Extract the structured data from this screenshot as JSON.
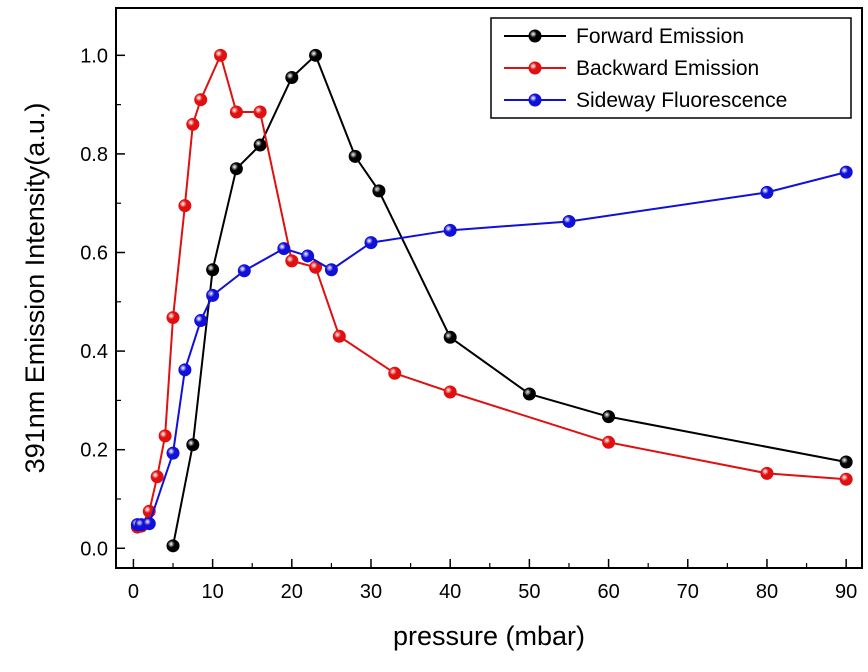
{
  "chart_data": {
    "type": "line",
    "xlabel": "pressure (mbar)",
    "ylabel": "391nm Emission Intensity(a.u.)",
    "xlim": [
      -2.2,
      92
    ],
    "ylim": [
      -0.04,
      1.096
    ],
    "xticks": [
      0,
      10,
      20,
      30,
      40,
      50,
      60,
      70,
      80,
      90
    ],
    "xtick_labels": [
      "0",
      "10",
      "20",
      "30",
      "40",
      "50",
      "60",
      "70",
      "80",
      "90"
    ],
    "yticks": [
      0.0,
      0.2,
      0.4,
      0.6,
      0.8,
      1.0
    ],
    "ytick_labels": [
      "0.0",
      "0.2",
      "0.4",
      "0.6",
      "0.8",
      "1.0"
    ],
    "grid": false,
    "legend_position": "top-right",
    "series": [
      {
        "name": "Forward Emission",
        "color": "#000000",
        "x": [
          5,
          7.5,
          10,
          13,
          16,
          20,
          23,
          28,
          31,
          40,
          50,
          60,
          90
        ],
        "y": [
          0.005,
          0.21,
          0.565,
          0.77,
          0.818,
          0.955,
          1.0,
          0.795,
          0.725,
          0.428,
          0.313,
          0.267,
          0.175
        ]
      },
      {
        "name": "Backward Emission",
        "color": "#e01010",
        "x": [
          0.5,
          1,
          2,
          3,
          4,
          5,
          6.5,
          7.5,
          8.5,
          11,
          13,
          16,
          20,
          23,
          26,
          33,
          40,
          60,
          80,
          90
        ],
        "y": [
          0.043,
          0.045,
          0.075,
          0.145,
          0.228,
          0.468,
          0.695,
          0.86,
          0.91,
          1.0,
          0.885,
          0.885,
          0.583,
          0.57,
          0.43,
          0.355,
          0.317,
          0.215,
          0.152,
          0.14
        ]
      },
      {
        "name": "Sideway Fluorescence",
        "color": "#1010d8",
        "x": [
          0.5,
          1,
          2,
          5,
          6.5,
          8.5,
          10,
          14,
          19,
          22,
          25,
          30,
          40,
          55,
          80,
          90
        ],
        "y": [
          0.048,
          0.048,
          0.05,
          0.193,
          0.362,
          0.462,
          0.513,
          0.563,
          0.608,
          0.593,
          0.565,
          0.62,
          0.645,
          0.663,
          0.722,
          0.763
        ]
      }
    ]
  }
}
